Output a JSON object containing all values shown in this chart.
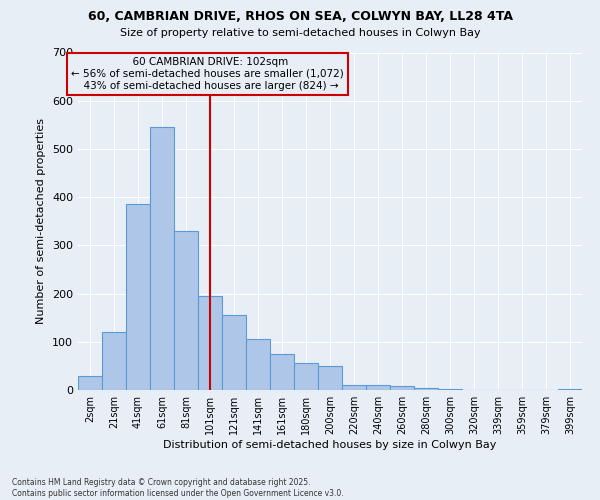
{
  "title_line1": "60, CAMBRIAN DRIVE, RHOS ON SEA, COLWYN BAY, LL28 4TA",
  "title_line2": "Size of property relative to semi-detached houses in Colwyn Bay",
  "xlabel": "Distribution of semi-detached houses by size in Colwyn Bay",
  "ylabel": "Number of semi-detached properties",
  "footnote": "Contains HM Land Registry data © Crown copyright and database right 2025.\nContains public sector information licensed under the Open Government Licence v3.0.",
  "bin_labels": [
    "2sqm",
    "21sqm",
    "41sqm",
    "61sqm",
    "81sqm",
    "101sqm",
    "121sqm",
    "141sqm",
    "161sqm",
    "180sqm",
    "200sqm",
    "220sqm",
    "240sqm",
    "260sqm",
    "280sqm",
    "300sqm",
    "320sqm",
    "339sqm",
    "359sqm",
    "379sqm",
    "399sqm"
  ],
  "bar_heights": [
    30,
    120,
    385,
    545,
    330,
    195,
    155,
    105,
    75,
    55,
    50,
    10,
    10,
    8,
    5,
    2,
    0,
    0,
    0,
    0,
    2
  ],
  "bar_color": "#aec6e8",
  "bar_edge_color": "#5b9bd5",
  "property_label": "60 CAMBRIAN DRIVE: 102sqm",
  "pct_smaller": 56,
  "pct_larger": 43,
  "count_smaller": 1072,
  "count_larger": 824,
  "vline_color": "#cc0000",
  "vline_bin_index": 5,
  "annotation_box_color": "#cc0000",
  "bg_color": "#e8eef6",
  "ylim": [
    0,
    700
  ],
  "yticks": [
    0,
    100,
    200,
    300,
    400,
    500,
    600,
    700
  ]
}
